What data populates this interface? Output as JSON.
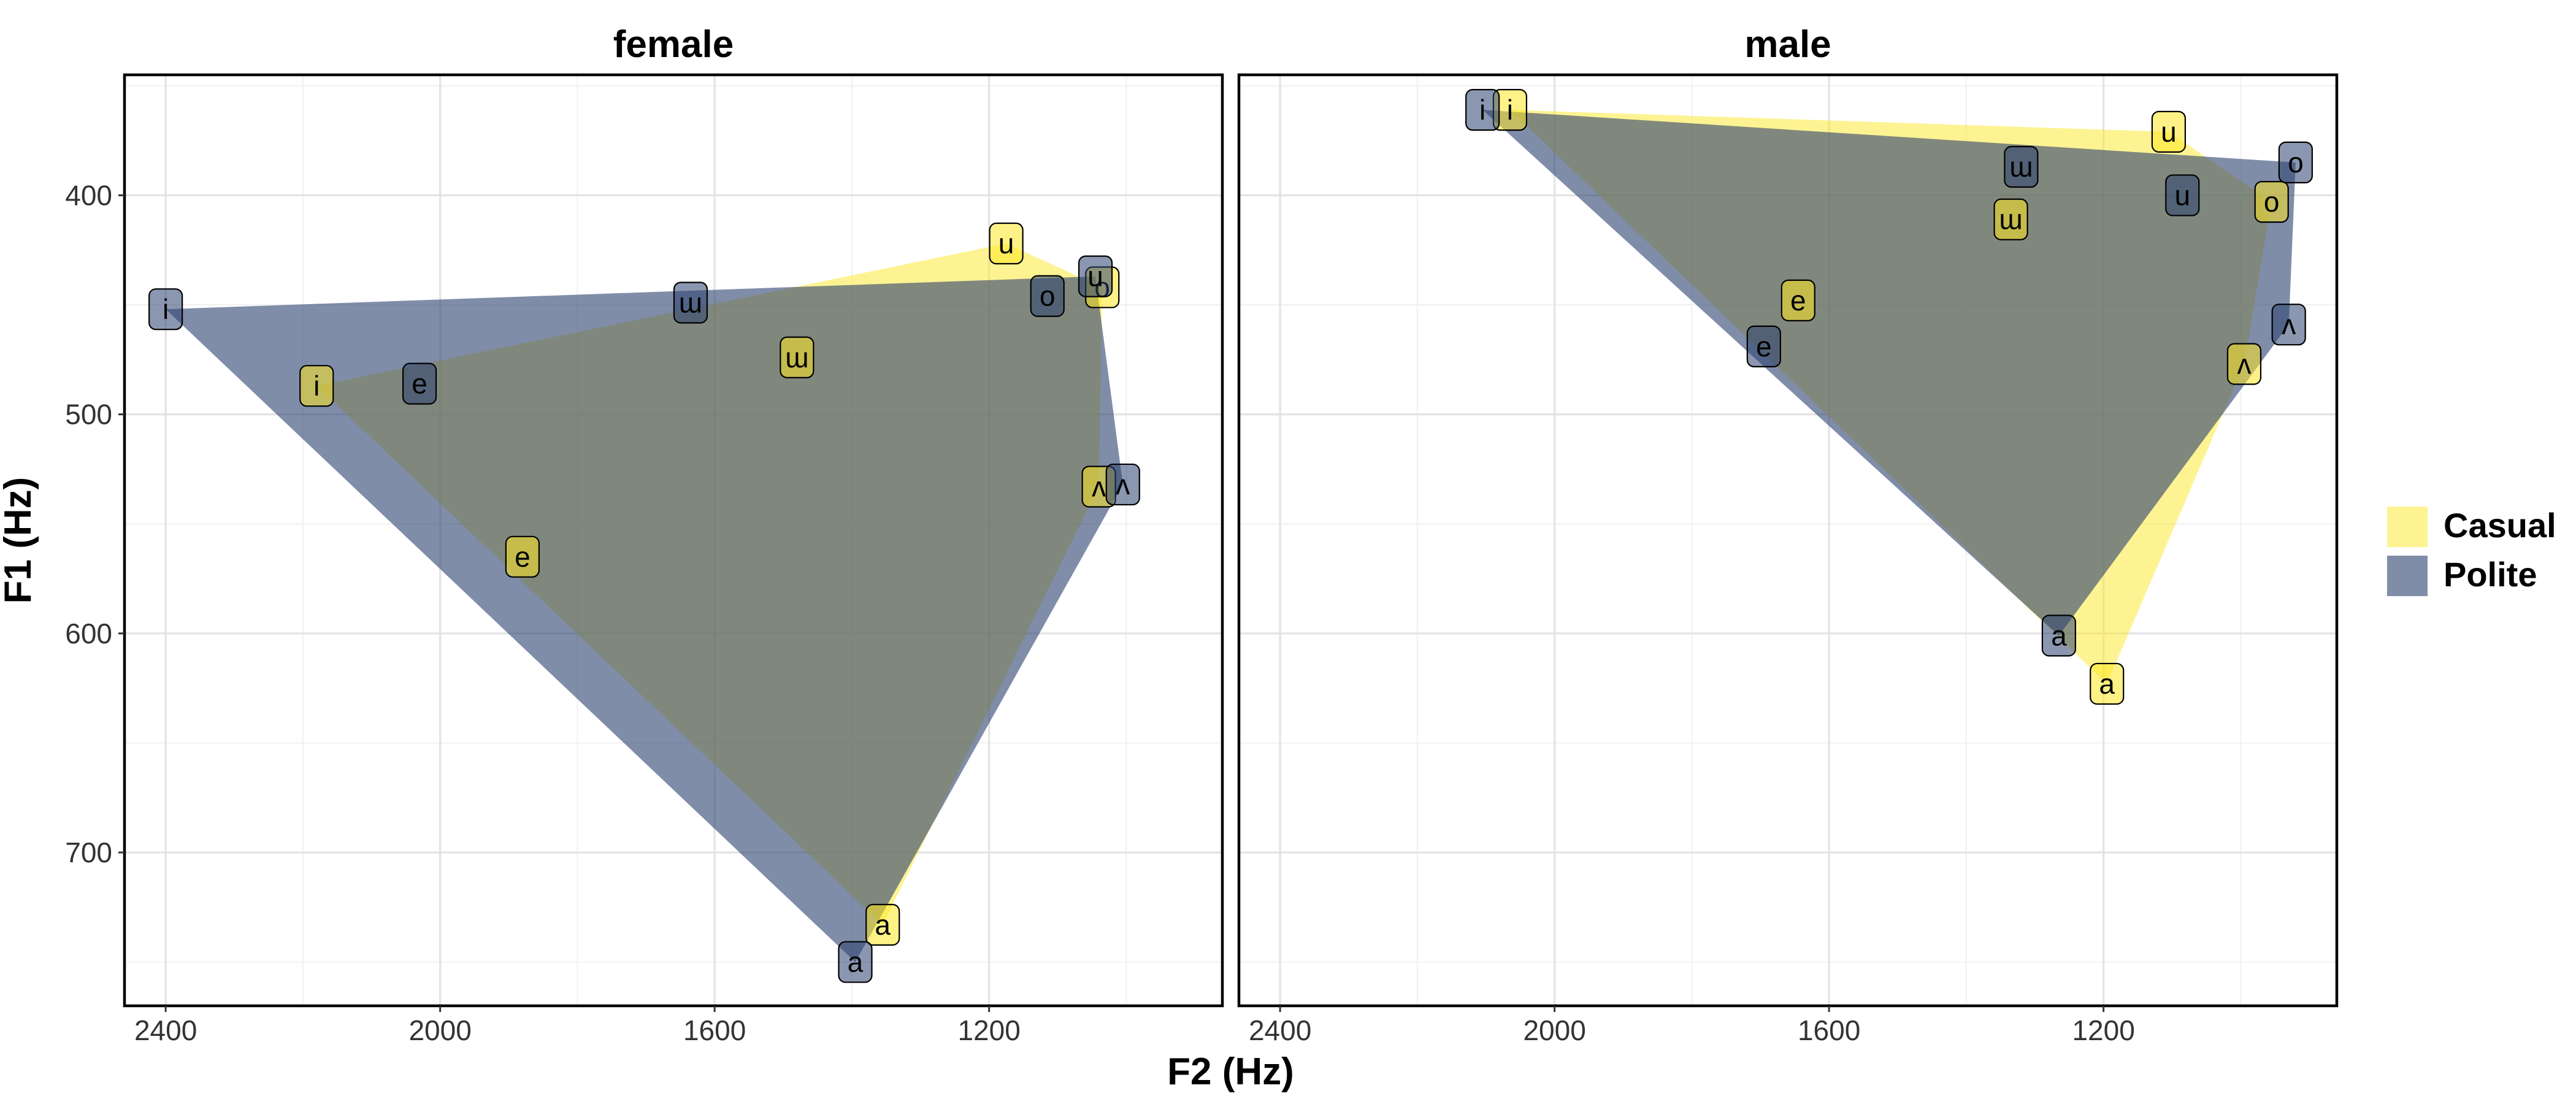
{
  "chart_data": {
    "type": "scatter",
    "subtype": "vowel-space convex hulls with text labels",
    "xlabel": "F2 (Hz)",
    "ylabel": "F1 (Hz)",
    "x_reversed": true,
    "y_reversed": true,
    "xlim": [
      2460,
      860
    ],
    "ylim": [
      345,
      770
    ],
    "x_ticks": [
      2400,
      2000,
      1600,
      1200
    ],
    "y_ticks": [
      400,
      500,
      600,
      700
    ],
    "grid": true,
    "legend_position": "right",
    "legend": [
      {
        "label": "Casual",
        "color": "#FDE725"
      },
      {
        "label": "Polite",
        "color": "#2C4170"
      }
    ],
    "facets": [
      {
        "title": "female",
        "series": [
          {
            "name": "Casual",
            "points": [
              {
                "label": "i",
                "x": 2180,
                "y": 487
              },
              {
                "label": "e",
                "x": 1880,
                "y": 565
              },
              {
                "label": "ɯ",
                "x": 1480,
                "y": 474
              },
              {
                "label": "u",
                "x": 1175,
                "y": 422
              },
              {
                "label": "o",
                "x": 1035,
                "y": 442
              },
              {
                "label": "ʌ",
                "x": 1040,
                "y": 533
              },
              {
                "label": "a",
                "x": 1355,
                "y": 733
              }
            ]
          },
          {
            "name": "Polite",
            "points": [
              {
                "label": "i",
                "x": 2400,
                "y": 452
              },
              {
                "label": "e",
                "x": 2030,
                "y": 486
              },
              {
                "label": "ɯ",
                "x": 1635,
                "y": 449
              },
              {
                "label": "o",
                "x": 1115,
                "y": 446
              },
              {
                "label": "u",
                "x": 1045,
                "y": 437
              },
              {
                "label": "ʌ",
                "x": 1005,
                "y": 532
              },
              {
                "label": "a",
                "x": 1395,
                "y": 750
              }
            ]
          }
        ]
      },
      {
        "title": "male",
        "series": [
          {
            "name": "Casual",
            "points": [
              {
                "label": "i",
                "x": 2065,
                "y": 361
              },
              {
                "label": "e",
                "x": 1645,
                "y": 448
              },
              {
                "label": "ɯ",
                "x": 1335,
                "y": 411
              },
              {
                "label": "u",
                "x": 1105,
                "y": 371
              },
              {
                "label": "o",
                "x": 955,
                "y": 403
              },
              {
                "label": "ʌ",
                "x": 995,
                "y": 477
              },
              {
                "label": "a",
                "x": 1195,
                "y": 623
              }
            ]
          },
          {
            "name": "Polite",
            "points": [
              {
                "label": "i",
                "x": 2105,
                "y": 361
              },
              {
                "label": "e",
                "x": 1695,
                "y": 469
              },
              {
                "label": "ɯ",
                "x": 1320,
                "y": 387
              },
              {
                "label": "u",
                "x": 1085,
                "y": 400
              },
              {
                "label": "o",
                "x": 920,
                "y": 385
              },
              {
                "label": "ʌ",
                "x": 930,
                "y": 459
              },
              {
                "label": "a",
                "x": 1265,
                "y": 601
              }
            ]
          }
        ]
      }
    ]
  }
}
